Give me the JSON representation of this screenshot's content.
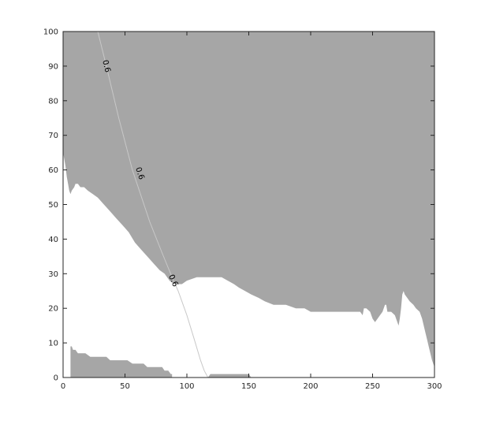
{
  "chart_data": {
    "type": "area",
    "title": "",
    "xlabel": "",
    "ylabel": "",
    "xlim": [
      0,
      300
    ],
    "ylim": [
      0,
      100
    ],
    "xticks": [
      0,
      50,
      100,
      150,
      200,
      250,
      300
    ],
    "yticks": [
      0,
      10,
      20,
      30,
      40,
      50,
      60,
      70,
      80,
      90,
      100
    ],
    "grid": false,
    "colors": {
      "fill": "#a6a6a6",
      "contour": "#c8c8c8",
      "axes": "#262626",
      "background": "#ffffff"
    },
    "filled_regions": [
      {
        "points": [
          [
            0,
            100
          ],
          [
            300,
            100
          ],
          [
            300,
            3
          ],
          [
            298,
            5
          ],
          [
            296,
            8
          ],
          [
            294,
            11
          ],
          [
            292,
            14
          ],
          [
            290,
            17
          ],
          [
            288,
            19
          ],
          [
            285,
            20
          ],
          [
            283,
            21
          ],
          [
            280,
            22
          ],
          [
            278,
            23
          ],
          [
            276,
            24
          ],
          [
            275,
            25
          ],
          [
            274,
            24
          ],
          [
            273,
            20
          ],
          [
            272,
            17
          ],
          [
            271,
            15
          ],
          [
            270,
            16
          ],
          [
            268,
            18
          ],
          [
            265,
            19
          ],
          [
            262,
            19
          ],
          [
            261,
            21
          ],
          [
            260,
            21
          ],
          [
            258,
            19
          ],
          [
            256,
            18
          ],
          [
            254,
            17
          ],
          [
            252,
            16
          ],
          [
            250,
            17
          ],
          [
            248,
            19
          ],
          [
            245,
            20
          ],
          [
            243,
            20
          ],
          [
            242,
            18
          ],
          [
            240,
            19
          ],
          [
            236,
            19
          ],
          [
            230,
            19
          ],
          [
            220,
            19
          ],
          [
            210,
            19
          ],
          [
            200,
            19
          ],
          [
            195,
            20
          ],
          [
            188,
            20
          ],
          [
            180,
            21
          ],
          [
            170,
            21
          ],
          [
            163,
            22
          ],
          [
            158,
            23
          ],
          [
            152,
            24
          ],
          [
            147,
            25
          ],
          [
            142,
            26
          ],
          [
            138,
            27
          ],
          [
            133,
            28
          ],
          [
            128,
            29
          ],
          [
            123,
            29
          ],
          [
            115,
            29
          ],
          [
            108,
            29
          ],
          [
            100,
            28
          ],
          [
            96,
            27
          ],
          [
            90,
            27
          ],
          [
            86,
            28
          ],
          [
            82,
            30
          ],
          [
            78,
            31
          ],
          [
            73,
            33
          ],
          [
            68,
            35
          ],
          [
            63,
            37
          ],
          [
            58,
            39
          ],
          [
            53,
            42
          ],
          [
            48,
            44
          ],
          [
            43,
            46
          ],
          [
            38,
            48
          ],
          [
            33,
            50
          ],
          [
            28,
            52
          ],
          [
            24,
            53
          ],
          [
            20,
            54
          ],
          [
            17,
            55
          ],
          [
            14,
            55
          ],
          [
            12,
            56
          ],
          [
            10,
            56
          ],
          [
            9,
            55
          ],
          [
            7,
            54
          ],
          [
            6,
            53
          ],
          [
            5,
            54
          ],
          [
            4,
            56
          ],
          [
            3,
            58
          ],
          [
            2,
            61
          ],
          [
            1,
            63
          ],
          [
            0,
            65
          ]
        ]
      },
      {
        "points": [
          [
            6,
            0
          ],
          [
            6,
            9
          ],
          [
            7,
            9
          ],
          [
            8,
            8
          ],
          [
            10,
            8
          ],
          [
            12,
            7
          ],
          [
            18,
            7
          ],
          [
            22,
            6
          ],
          [
            35,
            6
          ],
          [
            38,
            5
          ],
          [
            52,
            5
          ],
          [
            56,
            4
          ],
          [
            65,
            4
          ],
          [
            68,
            3
          ],
          [
            80,
            3
          ],
          [
            82,
            2
          ],
          [
            85,
            2
          ],
          [
            87,
            1
          ],
          [
            88,
            1
          ],
          [
            88,
            0
          ]
        ]
      },
      {
        "points": [
          [
            117,
            0
          ],
          [
            119,
            1
          ],
          [
            150,
            1
          ],
          [
            152,
            0
          ]
        ]
      }
    ],
    "contour_lines": [
      {
        "level": "0.6",
        "points": [
          [
            28,
            100
          ],
          [
            35,
            90
          ],
          [
            45,
            75
          ],
          [
            56,
            60
          ],
          [
            70,
            45
          ],
          [
            80,
            36
          ],
          [
            88,
            29
          ],
          [
            93,
            25
          ],
          [
            100,
            18
          ],
          [
            106,
            11
          ],
          [
            111,
            5
          ],
          [
            114,
            2
          ],
          [
            117,
            0
          ]
        ],
        "label_positions": [
          [
            35,
            90
          ],
          [
            62,
            59
          ],
          [
            89,
            28
          ]
        ]
      }
    ]
  }
}
